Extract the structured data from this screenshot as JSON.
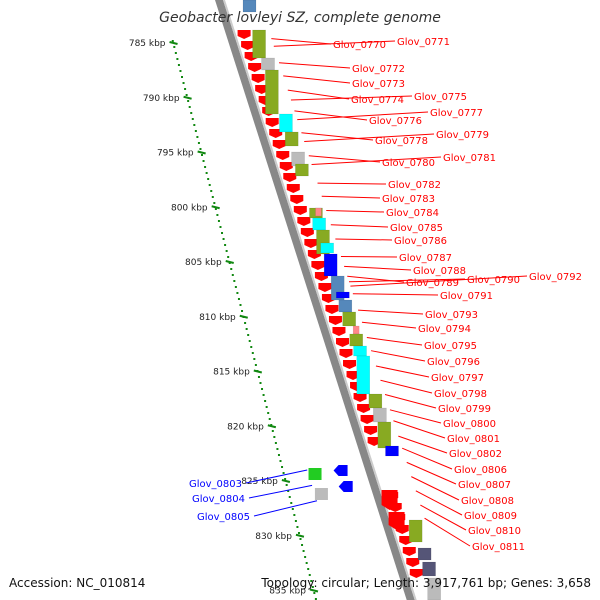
{
  "title": "Geobacter lovleyi SZ, complete genome",
  "accession": "Accession: NC_010814",
  "summary": "Topology: circular; Length: 3,917,761 bp; Genes: 3,658",
  "colors": {
    "forward_gene": "#ff0000",
    "reverse_gene": "#0000ff",
    "backbone": "#888888",
    "ruler": "#118811",
    "cog_olive": "#88aa22",
    "cog_cyan": "#00ffff",
    "cog_blue": "#0000ff",
    "cog_steel": "#5588bb",
    "cog_grey": "#bbbbbb",
    "cog_pink": "#ff8888",
    "cog_green": "#22cc22",
    "cog_navy": "#555577"
  },
  "ruler": [
    {
      "label": "785 kbp",
      "kbp": 785
    },
    {
      "label": "790 kbp",
      "kbp": 790
    },
    {
      "label": "795 kbp",
      "kbp": 795
    },
    {
      "label": "800 kbp",
      "kbp": 800
    },
    {
      "label": "805 kbp",
      "kbp": 805
    },
    {
      "label": "810 kbp",
      "kbp": 810
    },
    {
      "label": "815 kbp",
      "kbp": 815
    },
    {
      "label": "820 kbp",
      "kbp": 820
    },
    {
      "label": "825 kbp",
      "kbp": 825
    },
    {
      "label": "830 kbp",
      "kbp": 830
    },
    {
      "label": "835 kbp",
      "kbp": 835
    }
  ],
  "genes_forward": [
    {
      "label": "Glov_0770",
      "kbp": 784.6
    },
    {
      "label": "Glov_0771",
      "kbp": 785.3
    },
    {
      "label": "Glov_0772",
      "kbp": 786.8
    },
    {
      "label": "Glov_0773",
      "kbp": 788.0
    },
    {
      "label": "Glov_0774",
      "kbp": 789.3
    },
    {
      "label": "Glov_0775",
      "kbp": 790.2
    },
    {
      "label": "Glov_0776",
      "kbp": 791.2
    },
    {
      "label": "Glov_0777",
      "kbp": 792.0
    },
    {
      "label": "Glov_0778",
      "kbp": 793.2
    },
    {
      "label": "Glov_0779",
      "kbp": 794.0
    },
    {
      "label": "Glov_0780",
      "kbp": 795.3
    },
    {
      "label": "Glov_0781",
      "kbp": 796.1
    },
    {
      "label": "Glov_0782",
      "kbp": 797.8
    },
    {
      "label": "Glov_0783",
      "kbp": 799.0
    },
    {
      "label": "Glov_0784",
      "kbp": 800.3
    },
    {
      "label": "Glov_0785",
      "kbp": 801.6
    },
    {
      "label": "Glov_0786",
      "kbp": 802.9
    },
    {
      "label": "Glov_0787",
      "kbp": 804.5
    },
    {
      "label": "Glov_0788",
      "kbp": 805.4
    },
    {
      "label": "Glov_0789",
      "kbp": 806.3
    },
    {
      "label": "Glov_0790",
      "kbp": 806.8
    },
    {
      "label": "Glov_0792",
      "kbp": 807.2
    },
    {
      "label": "Glov_0791",
      "kbp": 807.9
    },
    {
      "label": "Glov_0793",
      "kbp": 809.4
    },
    {
      "label": "Glov_0794",
      "kbp": 810.5
    },
    {
      "label": "Glov_0795",
      "kbp": 811.9
    },
    {
      "label": "Glov_0796",
      "kbp": 813.1
    },
    {
      "label": "Glov_0797",
      "kbp": 814.5
    },
    {
      "label": "Glov_0798",
      "kbp": 815.8
    },
    {
      "label": "Glov_0799",
      "kbp": 817.1
    },
    {
      "label": "Glov_0800",
      "kbp": 818.5
    },
    {
      "label": "Glov_0801",
      "kbp": 819.5
    },
    {
      "label": "Glov_0802",
      "kbp": 820.9
    },
    {
      "label": "Glov_0806",
      "kbp": 822.0
    },
    {
      "label": "Glov_0807",
      "kbp": 823.3
    },
    {
      "label": "Glov_0808",
      "kbp": 824.6
    },
    {
      "label": "Glov_0809",
      "kbp": 825.9
    },
    {
      "label": "Glov_0810",
      "kbp": 827.2
    },
    {
      "label": "Glov_0811",
      "kbp": 828.4
    }
  ],
  "genes_reverse": [
    {
      "label": "Glov_0803",
      "kbp": 824.0
    },
    {
      "label": "Glov_0804",
      "kbp": 825.4
    },
    {
      "label": "Glov_0805",
      "kbp": 826.8
    }
  ]
}
